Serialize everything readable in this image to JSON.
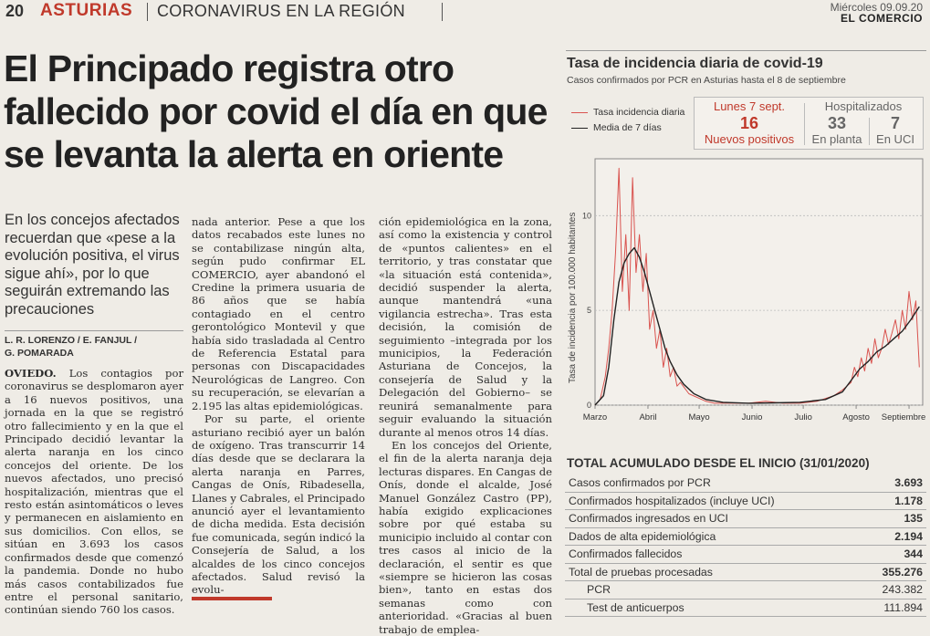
{
  "header": {
    "page_number": "20",
    "section": "ASTURIAS",
    "subsection": "CORONAVIRUS EN LA REGIÓN",
    "date": "Miércoles 09.09.20",
    "newspaper": "EL COMERCIO"
  },
  "article": {
    "headline_lines": [
      "El Principado registra otro",
      "fallecido por covid el día en que",
      "se levanta la alerta en oriente"
    ],
    "lead": "En los concejos afectados recuerdan que «pese a la evolución positiva, el virus sigue ahí», por lo que seguirán extremando las precauciones",
    "authors": [
      "L. R. LORENZO / E. FANJUL /",
      "G. POMARADA"
    ],
    "location": "OVIEDO.",
    "col1_p1": "Los contagios por coronavirus se desplomaron ayer a 16 nuevos positivos, una jornada en la que se registró otro fallecimiento y en la que el Principado decidió levantar la alerta naranja en los cinco concejos del oriente. De los nuevos afectados, uno precisó hospitalización, mientras que el resto están asintomáticos o leves y permanecen en aislamiento en sus domicilios. Con ellos, se sitúan en 3.693 los casos confirmados desde que comenzó la pandemia. Donde no hubo más casos contabilizados fue entre el personal sanitario, continúan siendo 760 los casos.",
    "col2_p1": "nada anterior. Pese a que los datos recabados este lunes no se contabilizase ningún alta, según pudo confirmar EL COMERCIO, ayer abandonó el Credine la primera usuaria de 86 años que se había contagiado en el centro gerontológico Montevil y que había sido trasladada al Centro de Referencia Estatal para personas con Discapacidades Neurológicas de Langreo. Con su recuperación, se elevarían a 2.195 las altas epidemiológicas.",
    "col2_p2": "Por su parte, el oriente asturiano recibió ayer un balón de oxígeno. Tras transcurrir 14 días desde que se declarara la alerta naranja en Parres, Cangas de Onís, Ribadesella, Llanes y Cabrales, el Principado anunció ayer el levantamiento de dicha medida. Esta decisión fue comunicada, según indicó la Consejería de Salud, a los alcaldes de los cinco concejos afectados. Salud revisó la evolu-",
    "col3_p1": "ción epidemiológica en la zona, así como la existencia y control de «puntos calientes» en el territorio, y tras constatar que «la situación está contenida», decidió suspender la alerta, aunque mantendrá «una vigilancia estrecha». Tras esta decisión, la comisión de seguimiento –integrada por los municipios, la Federación Asturiana de Concejos, la consejería de Salud y la Delegación del Gobierno– se reunirá semanalmente para seguir evaluando la situación durante al menos otros 14 días.",
    "col3_p2": "En los concejos del Oriente, el fin de la alerta naranja deja lecturas dispares. En Cangas de Onís, donde el alcalde, José Manuel González Castro (PP), había exigido explicaciones sobre por qué estaba su municipio incluido al contar con tres casos al inicio de la declaración, el sentir es que «siempre se hicieron las cosas bien», tanto en estas dos semanas como con anterioridad. «Gracias al buen trabajo de emplea-"
  },
  "infographic": {
    "title": "Tasa de incidencia diaria de covid-19",
    "subtitle": "Casos confirmados por PCR en Asturias hasta el 8 de septiembre",
    "legend": [
      "Tasa incidencia diaria",
      "Media de 7 días"
    ],
    "colors": {
      "daily": "#d9534f",
      "avg": "#222222",
      "highlight": "#c0392b"
    },
    "stats": {
      "date": "Lunes 7 sept.",
      "new_positives": "16",
      "new_positives_label": "Nuevos positivos",
      "hospitalized_label": "Hospitalizados",
      "ward": "33",
      "ward_label": "En planta",
      "icu": "7",
      "icu_label": "En UCI"
    },
    "accumulated": {
      "title": "TOTAL ACUMULADO DESDE EL INICIO (31/01/2020)",
      "rows": [
        {
          "label": "Casos confirmados por PCR",
          "value": "3.693",
          "sub": false
        },
        {
          "label": "Confirmados hospitalizados (incluye UCI)",
          "value": "1.178",
          "sub": false
        },
        {
          "label": "Confirmados ingresados en UCI",
          "value": "135",
          "sub": false
        },
        {
          "label": "Dados de alta epidemiológica",
          "value": "2.194",
          "sub": false
        },
        {
          "label": "Confirmados fallecidos",
          "value": "344",
          "sub": false
        },
        {
          "label": "Total de pruebas procesadas",
          "value": "355.276",
          "sub": false
        },
        {
          "label": "PCR",
          "value": "243.382",
          "sub": true
        },
        {
          "label": "Test de anticuerpos",
          "value": "111.894",
          "sub": true
        }
      ]
    }
  },
  "chart_data": {
    "type": "line",
    "title": "Tasa de incidencia diaria de covid-19",
    "ylabel": "Tasa de incidencia por 100.000 habitantes",
    "xlabel": "",
    "x_ticks": [
      "Marzo",
      "Abril",
      "Mayo",
      "Junio",
      "Julio",
      "Agosto",
      "Septiembre"
    ],
    "y_ticks": [
      "0",
      "5",
      "10"
    ],
    "ylim": [
      0,
      13
    ],
    "x_unit": "días desde el 1 de marzo",
    "series": [
      {
        "name": "Tasa incidencia diaria",
        "x": [
          0,
          3,
          6,
          8,
          10,
          12,
          14,
          16,
          18,
          20,
          22,
          24,
          26,
          28,
          30,
          32,
          34,
          36,
          38,
          40,
          42,
          44,
          46,
          48,
          50,
          55,
          60,
          65,
          70,
          80,
          90,
          100,
          110,
          120,
          130,
          140,
          145,
          150,
          152,
          154,
          156,
          158,
          160,
          162,
          164,
          166,
          168,
          170,
          172,
          174,
          176,
          178,
          180,
          182,
          184,
          186,
          188,
          190
        ],
        "y": [
          0,
          0.3,
          1.5,
          3,
          5,
          8,
          12.5,
          6,
          9,
          5,
          12,
          7,
          9,
          6,
          8,
          4,
          5,
          3,
          4,
          2,
          3,
          1.5,
          2,
          1,
          1.2,
          0.6,
          0.4,
          0.2,
          0.1,
          0.1,
          0.1,
          0.2,
          0.1,
          0.1,
          0.2,
          0.5,
          0.8,
          1.2,
          2,
          1.5,
          2.5,
          1.8,
          3,
          2.2,
          3.5,
          2.5,
          3,
          4,
          3.2,
          3.8,
          4.5,
          3.5,
          5,
          4,
          6,
          4.5,
          5.5,
          2
        ]
      },
      {
        "name": "Media de 7 días",
        "x": [
          0,
          5,
          8,
          11,
          14,
          17,
          20,
          23,
          26,
          29,
          32,
          35,
          38,
          41,
          44,
          48,
          52,
          58,
          65,
          75,
          90,
          105,
          120,
          135,
          145,
          150,
          155,
          160,
          165,
          170,
          175,
          180,
          185,
          190
        ],
        "y": [
          0,
          0.5,
          2,
          4.5,
          6.5,
          7.5,
          8,
          8.3,
          7.8,
          7,
          6,
          5,
          4,
          3,
          2.3,
          1.6,
          1.1,
          0.6,
          0.3,
          0.15,
          0.1,
          0.12,
          0.15,
          0.3,
          0.7,
          1.3,
          1.9,
          2.3,
          2.8,
          3.1,
          3.5,
          3.9,
          4.5,
          5.2
        ]
      }
    ]
  }
}
